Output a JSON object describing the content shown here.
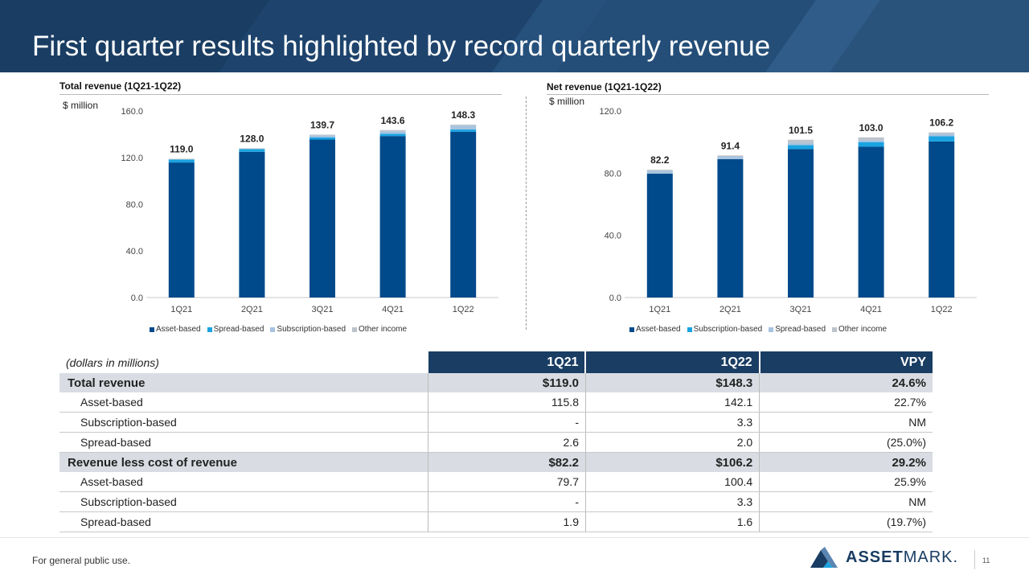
{
  "header": {
    "title": "First quarter results highlighted by record quarterly revenue"
  },
  "colors": {
    "asset": "#004a8b",
    "spread": "#1aa3e0",
    "subscription": "#a7c3e0",
    "other": "#bcc3cb"
  },
  "chart_data": [
    {
      "type": "bar",
      "stacked": true,
      "title": "Total revenue (1Q21-1Q22)",
      "unit": "$ million",
      "categories": [
        "1Q21",
        "2Q21",
        "3Q21",
        "4Q21",
        "1Q22"
      ],
      "ylim": [
        0,
        160
      ],
      "yticks": [
        "0.0",
        "40.0",
        "80.0",
        "120.0",
        "160.0"
      ],
      "totals": [
        "119.0",
        "128.0",
        "139.7",
        "143.6",
        "148.3"
      ],
      "series": [
        {
          "name": "Asset-based",
          "color": "#004a8b",
          "values": [
            115.8,
            125.0,
            135.5,
            138.5,
            142.1
          ]
        },
        {
          "name": "Spread-based",
          "color": "#1aa3e0",
          "values": [
            2.6,
            2.4,
            1.9,
            2.0,
            2.0
          ]
        },
        {
          "name": "Subscription-based",
          "color": "#a7c3e0",
          "values": [
            0.0,
            0.0,
            1.5,
            2.0,
            3.3
          ]
        },
        {
          "name": "Other income",
          "color": "#bcc3cb",
          "values": [
            0.6,
            0.6,
            0.8,
            1.1,
            0.9
          ]
        }
      ],
      "legend_position": "bottom"
    },
    {
      "type": "bar",
      "stacked": true,
      "title": "Net revenue (1Q21-1Q22)",
      "unit": "$ million",
      "categories": [
        "1Q21",
        "2Q21",
        "3Q21",
        "4Q21",
        "1Q22"
      ],
      "ylim": [
        0,
        120
      ],
      "yticks": [
        "0.0",
        "40.0",
        "80.0",
        "120.0"
      ],
      "totals": [
        "82.2",
        "91.4",
        "101.5",
        "103.0",
        "106.2"
      ],
      "series": [
        {
          "name": "Asset-based",
          "color": "#004a8b",
          "values": [
            79.7,
            89.0,
            95.5,
            97.0,
            100.4
          ]
        },
        {
          "name": "Subscription-based",
          "color": "#1aa3e0",
          "values": [
            0.0,
            0.0,
            2.5,
            3.0,
            3.3
          ]
        },
        {
          "name": "Spread-based",
          "color": "#a7c3e0",
          "values": [
            1.9,
            1.8,
            1.3,
            1.3,
            1.6
          ]
        },
        {
          "name": "Other income",
          "color": "#bcc3cb",
          "values": [
            0.6,
            0.6,
            2.2,
            1.7,
            0.9
          ]
        }
      ],
      "legend_position": "bottom"
    }
  ],
  "table": {
    "caption": "(dollars in millions)",
    "columns": [
      "1Q21",
      "1Q22",
      "VPY"
    ],
    "rows": [
      {
        "kind": "total",
        "label": "Total revenue",
        "values": [
          "$119.0",
          "$148.3",
          "24.6%"
        ]
      },
      {
        "kind": "sub",
        "label": "Asset-based",
        "values": [
          "115.8",
          "142.1",
          "22.7%"
        ]
      },
      {
        "kind": "sub",
        "label": "Subscription-based",
        "values": [
          "-",
          "3.3",
          "NM"
        ]
      },
      {
        "kind": "sub",
        "label": "Spread-based",
        "values": [
          "2.6",
          "2.0",
          "(25.0%)"
        ]
      },
      {
        "kind": "total",
        "label": "Revenue less cost of revenue",
        "values": [
          "$82.2",
          "$106.2",
          "29.2%"
        ]
      },
      {
        "kind": "sub",
        "label": "Asset-based",
        "values": [
          "79.7",
          "100.4",
          "25.9%"
        ]
      },
      {
        "kind": "sub",
        "label": "Subscription-based",
        "values": [
          "-",
          "3.3",
          "NM"
        ]
      },
      {
        "kind": "sub",
        "label": "Spread-based",
        "values": [
          "1.9",
          "1.6",
          "(19.7%)"
        ]
      }
    ]
  },
  "footer": {
    "text": "For general public use.",
    "logo_bold": "ASSET",
    "logo_light": "MARK.",
    "page": "11"
  }
}
